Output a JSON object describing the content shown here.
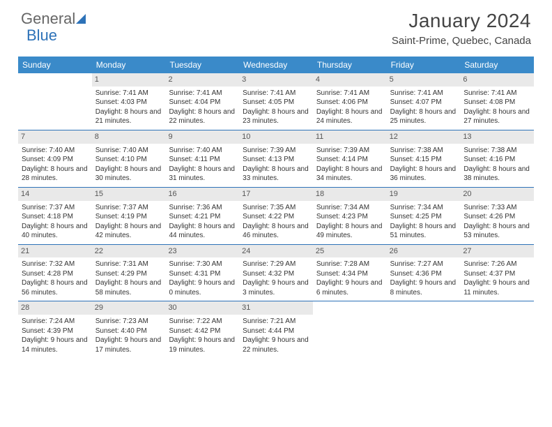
{
  "logo": {
    "part1": "General",
    "part2": "Blue"
  },
  "title": "January 2024",
  "location": "Saint-Prime, Quebec, Canada",
  "colors": {
    "header_bg": "#3a8ac9",
    "accent": "#2d72b8",
    "daynum_bg": "#e9e9e9",
    "text": "#333333"
  },
  "day_labels": [
    "Sunday",
    "Monday",
    "Tuesday",
    "Wednesday",
    "Thursday",
    "Friday",
    "Saturday"
  ],
  "weeks": [
    [
      {
        "n": "",
        "sr": "",
        "ss": "",
        "dl": ""
      },
      {
        "n": "1",
        "sr": "Sunrise: 7:41 AM",
        "ss": "Sunset: 4:03 PM",
        "dl": "Daylight: 8 hours and 21 minutes."
      },
      {
        "n": "2",
        "sr": "Sunrise: 7:41 AM",
        "ss": "Sunset: 4:04 PM",
        "dl": "Daylight: 8 hours and 22 minutes."
      },
      {
        "n": "3",
        "sr": "Sunrise: 7:41 AM",
        "ss": "Sunset: 4:05 PM",
        "dl": "Daylight: 8 hours and 23 minutes."
      },
      {
        "n": "4",
        "sr": "Sunrise: 7:41 AM",
        "ss": "Sunset: 4:06 PM",
        "dl": "Daylight: 8 hours and 24 minutes."
      },
      {
        "n": "5",
        "sr": "Sunrise: 7:41 AM",
        "ss": "Sunset: 4:07 PM",
        "dl": "Daylight: 8 hours and 25 minutes."
      },
      {
        "n": "6",
        "sr": "Sunrise: 7:41 AM",
        "ss": "Sunset: 4:08 PM",
        "dl": "Daylight: 8 hours and 27 minutes."
      }
    ],
    [
      {
        "n": "7",
        "sr": "Sunrise: 7:40 AM",
        "ss": "Sunset: 4:09 PM",
        "dl": "Daylight: 8 hours and 28 minutes."
      },
      {
        "n": "8",
        "sr": "Sunrise: 7:40 AM",
        "ss": "Sunset: 4:10 PM",
        "dl": "Daylight: 8 hours and 30 minutes."
      },
      {
        "n": "9",
        "sr": "Sunrise: 7:40 AM",
        "ss": "Sunset: 4:11 PM",
        "dl": "Daylight: 8 hours and 31 minutes."
      },
      {
        "n": "10",
        "sr": "Sunrise: 7:39 AM",
        "ss": "Sunset: 4:13 PM",
        "dl": "Daylight: 8 hours and 33 minutes."
      },
      {
        "n": "11",
        "sr": "Sunrise: 7:39 AM",
        "ss": "Sunset: 4:14 PM",
        "dl": "Daylight: 8 hours and 34 minutes."
      },
      {
        "n": "12",
        "sr": "Sunrise: 7:38 AM",
        "ss": "Sunset: 4:15 PM",
        "dl": "Daylight: 8 hours and 36 minutes."
      },
      {
        "n": "13",
        "sr": "Sunrise: 7:38 AM",
        "ss": "Sunset: 4:16 PM",
        "dl": "Daylight: 8 hours and 38 minutes."
      }
    ],
    [
      {
        "n": "14",
        "sr": "Sunrise: 7:37 AM",
        "ss": "Sunset: 4:18 PM",
        "dl": "Daylight: 8 hours and 40 minutes."
      },
      {
        "n": "15",
        "sr": "Sunrise: 7:37 AM",
        "ss": "Sunset: 4:19 PM",
        "dl": "Daylight: 8 hours and 42 minutes."
      },
      {
        "n": "16",
        "sr": "Sunrise: 7:36 AM",
        "ss": "Sunset: 4:21 PM",
        "dl": "Daylight: 8 hours and 44 minutes."
      },
      {
        "n": "17",
        "sr": "Sunrise: 7:35 AM",
        "ss": "Sunset: 4:22 PM",
        "dl": "Daylight: 8 hours and 46 minutes."
      },
      {
        "n": "18",
        "sr": "Sunrise: 7:34 AM",
        "ss": "Sunset: 4:23 PM",
        "dl": "Daylight: 8 hours and 49 minutes."
      },
      {
        "n": "19",
        "sr": "Sunrise: 7:34 AM",
        "ss": "Sunset: 4:25 PM",
        "dl": "Daylight: 8 hours and 51 minutes."
      },
      {
        "n": "20",
        "sr": "Sunrise: 7:33 AM",
        "ss": "Sunset: 4:26 PM",
        "dl": "Daylight: 8 hours and 53 minutes."
      }
    ],
    [
      {
        "n": "21",
        "sr": "Sunrise: 7:32 AM",
        "ss": "Sunset: 4:28 PM",
        "dl": "Daylight: 8 hours and 56 minutes."
      },
      {
        "n": "22",
        "sr": "Sunrise: 7:31 AM",
        "ss": "Sunset: 4:29 PM",
        "dl": "Daylight: 8 hours and 58 minutes."
      },
      {
        "n": "23",
        "sr": "Sunrise: 7:30 AM",
        "ss": "Sunset: 4:31 PM",
        "dl": "Daylight: 9 hours and 0 minutes."
      },
      {
        "n": "24",
        "sr": "Sunrise: 7:29 AM",
        "ss": "Sunset: 4:32 PM",
        "dl": "Daylight: 9 hours and 3 minutes."
      },
      {
        "n": "25",
        "sr": "Sunrise: 7:28 AM",
        "ss": "Sunset: 4:34 PM",
        "dl": "Daylight: 9 hours and 6 minutes."
      },
      {
        "n": "26",
        "sr": "Sunrise: 7:27 AM",
        "ss": "Sunset: 4:36 PM",
        "dl": "Daylight: 9 hours and 8 minutes."
      },
      {
        "n": "27",
        "sr": "Sunrise: 7:26 AM",
        "ss": "Sunset: 4:37 PM",
        "dl": "Daylight: 9 hours and 11 minutes."
      }
    ],
    [
      {
        "n": "28",
        "sr": "Sunrise: 7:24 AM",
        "ss": "Sunset: 4:39 PM",
        "dl": "Daylight: 9 hours and 14 minutes."
      },
      {
        "n": "29",
        "sr": "Sunrise: 7:23 AM",
        "ss": "Sunset: 4:40 PM",
        "dl": "Daylight: 9 hours and 17 minutes."
      },
      {
        "n": "30",
        "sr": "Sunrise: 7:22 AM",
        "ss": "Sunset: 4:42 PM",
        "dl": "Daylight: 9 hours and 19 minutes."
      },
      {
        "n": "31",
        "sr": "Sunrise: 7:21 AM",
        "ss": "Sunset: 4:44 PM",
        "dl": "Daylight: 9 hours and 22 minutes."
      },
      {
        "n": "",
        "sr": "",
        "ss": "",
        "dl": ""
      },
      {
        "n": "",
        "sr": "",
        "ss": "",
        "dl": ""
      },
      {
        "n": "",
        "sr": "",
        "ss": "",
        "dl": ""
      }
    ]
  ]
}
